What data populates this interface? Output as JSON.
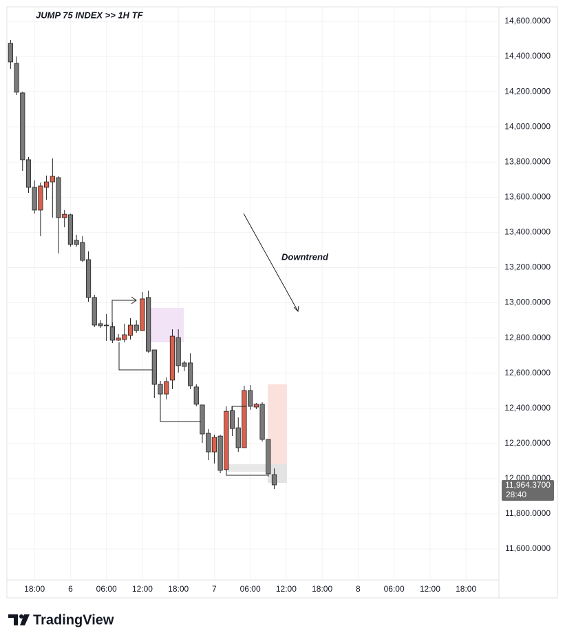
{
  "chart_data": {
    "type": "candlestick",
    "title": "JUMP 75 INDEX >> 1H TF",
    "annotation": "Downtrend",
    "categories": [
      null,
      null,
      null,
      null,
      "18:00",
      null,
      null,
      null,
      null,
      null,
      "6",
      null,
      null,
      null,
      null,
      null,
      "06:00",
      null,
      null,
      null,
      null,
      null,
      "12:00",
      null,
      null,
      null,
      null,
      null,
      "18:00",
      null,
      null,
      null,
      null,
      null,
      "7",
      null,
      null,
      null,
      null,
      null,
      "06:00",
      null,
      null,
      null,
      null,
      null,
      "12:00",
      null,
      null,
      null,
      null,
      null,
      "18:00",
      null,
      null,
      null,
      null,
      null,
      "8",
      null,
      null,
      null,
      null,
      null,
      "06:00",
      null,
      null,
      null,
      null,
      null,
      "12:00",
      null,
      null,
      null,
      null,
      null,
      "18:00",
      null,
      null,
      null,
      null,
      null
    ],
    "open": [
      14475,
      14361,
      14193,
      13813,
      13656,
      13527,
      13656,
      13687,
      13711,
      13484,
      13500,
      13355,
      13343,
      13245,
      13030,
      12881,
      12873,
      12865,
      12787,
      12791,
      12814,
      12873,
      12842,
      13030,
      12732,
      12536,
      12481,
      12560,
      12802,
      12658,
      12658,
      12521,
      12419,
      12258,
      12152,
      12242,
      12051,
      12387,
      12289,
      12176,
      12501,
      12407,
      12423,
      12223,
      12023,
      null,
      null,
      null,
      null,
      null,
      null,
      null,
      null,
      null,
      null,
      null,
      null,
      null,
      null,
      null,
      null,
      null,
      null,
      null,
      null,
      null,
      null,
      null,
      null,
      null,
      null,
      null,
      null,
      null,
      null,
      null,
      null,
      null,
      null,
      null,
      null,
      null
    ],
    "high": [
      14494,
      14400,
      14200,
      13829,
      13695,
      13683,
      13723,
      13821,
      13719,
      13527,
      13505,
      13386,
      13378,
      13292,
      13045,
      12900,
      12936,
      12889,
      12822,
      12881,
      12912,
      12900,
      13061,
      13069,
      12732,
      12556,
      12575,
      12849,
      12849,
      12670,
      12712,
      12536,
      12419,
      12282,
      12250,
      12250,
      12411,
      12411,
      12348,
      12528,
      12532,
      12430,
      12434,
      12223,
      12058,
      null,
      null,
      null,
      null,
      null,
      null,
      null,
      null,
      null,
      null,
      null,
      null,
      null,
      null,
      null,
      null,
      null,
      null,
      null,
      null,
      null,
      null,
      null,
      null,
      null,
      null,
      null,
      null,
      null,
      null,
      null,
      null,
      null,
      null,
      null,
      null,
      null
    ],
    "low": [
      14330,
      14181,
      13750,
      13625,
      13507,
      13378,
      13586,
      13484,
      13280,
      13429,
      13319,
      13319,
      13233,
      13006,
      12861,
      12857,
      12783,
      12771,
      12783,
      12775,
      12791,
      12830,
      12842,
      12716,
      12458,
      12462,
      12450,
      12509,
      12603,
      12611,
      12509,
      12411,
      12203,
      12105,
      12086,
      12031,
      12043,
      12242,
      12152,
      12176,
      12391,
      12395,
      12211,
      12012,
      11941,
      null,
      null,
      null,
      null,
      null,
      null,
      null,
      null,
      null,
      null,
      null,
      null,
      null,
      null,
      null,
      null,
      null,
      null,
      null,
      null,
      null,
      null,
      null,
      null,
      null,
      null,
      null,
      null,
      null,
      null,
      null,
      null,
      null,
      null,
      null,
      null,
      null
    ],
    "close": [
      14369,
      14197,
      13813,
      13656,
      13527,
      13664,
      13687,
      13719,
      13484,
      13503,
      13331,
      13331,
      13241,
      13030,
      12873,
      12869,
      12869,
      12787,
      12799,
      12818,
      12873,
      12842,
      13022,
      12724,
      12536,
      12481,
      12552,
      12810,
      12642,
      12638,
      12528,
      12423,
      12254,
      12152,
      12235,
      12047,
      12383,
      12285,
      12176,
      12501,
      12411,
      12423,
      12223,
      12027,
      11964.37,
      null,
      null,
      null,
      null,
      null,
      null,
      null,
      null,
      null,
      null,
      null,
      null,
      null,
      null,
      null,
      null,
      null,
      null,
      null,
      null,
      null,
      null,
      null,
      null,
      null,
      null,
      null,
      null,
      null,
      null,
      null,
      null,
      null,
      null,
      null,
      null,
      null
    ],
    "up_color": "#d9614e",
    "down_color": "#7a7a7a",
    "ylim": [
      11334,
      14682
    ],
    "yticks": [
      {
        "value": 14600,
        "label": "14,600.0000"
      },
      {
        "value": 14400,
        "label": "14,400.0000"
      },
      {
        "value": 14200,
        "label": "14,200.0000"
      },
      {
        "value": 14000,
        "label": "14,000.0000"
      },
      {
        "value": 13800,
        "label": "13,800.0000"
      },
      {
        "value": 13600,
        "label": "13,600.0000"
      },
      {
        "value": 13400,
        "label": "13,400.0000"
      },
      {
        "value": 13200,
        "label": "13,200.0000"
      },
      {
        "value": 13000,
        "label": "13,000.0000"
      },
      {
        "value": 12800,
        "label": "12,800.0000"
      },
      {
        "value": 12600,
        "label": "12,600.0000"
      },
      {
        "value": 12400,
        "label": "12,400.0000"
      },
      {
        "value": 12200,
        "label": "12,200.0000"
      },
      {
        "value": 12000,
        "label": "12,000.0000"
      },
      {
        "value": 11800,
        "label": "11,800.0000"
      },
      {
        "value": 11600,
        "label": "11,600.0000"
      }
    ],
    "grid": true,
    "last_price": {
      "value": 11964.37,
      "label": "11,964.3700"
    },
    "countdown": "28:40"
  },
  "brand": "TradingView"
}
